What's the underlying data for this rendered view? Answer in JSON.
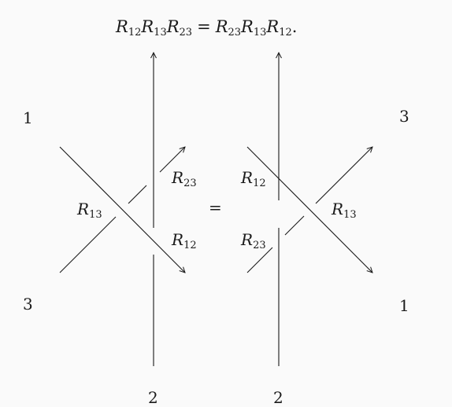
{
  "equation": {
    "lhs": [
      {
        "sym": "R",
        "sub": "12"
      },
      {
        "sym": "R",
        "sub": "13"
      },
      {
        "sym": "R",
        "sub": "23"
      }
    ],
    "operator": "=",
    "rhs": [
      {
        "sym": "R",
        "sub": "23"
      },
      {
        "sym": "R",
        "sub": "13"
      },
      {
        "sym": "R",
        "sub": "12"
      }
    ],
    "end": "."
  },
  "left_diagram": {
    "top_left_strand": "1",
    "bottom_left_strand": "3",
    "bottom_strand": "2",
    "labels": {
      "r13": {
        "sym": "R",
        "sub": "13"
      },
      "r23": {
        "sym": "R",
        "sub": "23"
      },
      "r12": {
        "sym": "R",
        "sub": "12"
      }
    }
  },
  "middle_equals": "=",
  "right_diagram": {
    "top_right_strand": "3",
    "bottom_right_strand": "1",
    "bottom_strand": "2",
    "labels": {
      "r12": {
        "sym": "R",
        "sub": "12"
      },
      "r23": {
        "sym": "R",
        "sub": "23"
      },
      "r13": {
        "sym": "R",
        "sub": "13"
      }
    }
  },
  "colors": {
    "stroke": "#1a1a1a",
    "background": "#fafafa"
  }
}
